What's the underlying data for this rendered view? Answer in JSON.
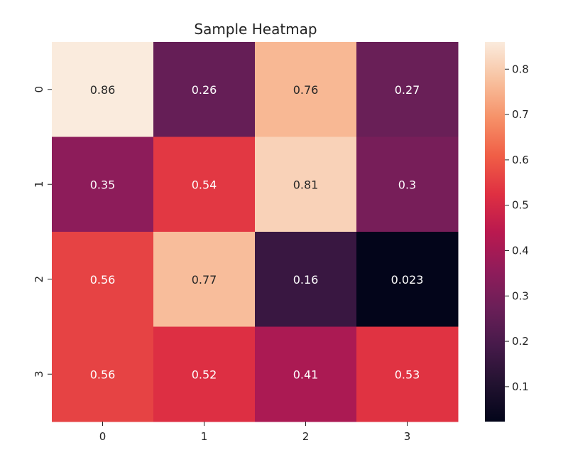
{
  "chart_data": {
    "type": "heatmap",
    "title": "Sample Heatmap",
    "x_labels": [
      "0",
      "1",
      "2",
      "3"
    ],
    "y_labels": [
      "0",
      "1",
      "2",
      "3"
    ],
    "values": [
      [
        0.86,
        0.26,
        0.76,
        0.27
      ],
      [
        0.35,
        0.54,
        0.81,
        0.3
      ],
      [
        0.56,
        0.77,
        0.16,
        0.023
      ],
      [
        0.56,
        0.52,
        0.41,
        0.53
      ]
    ],
    "annotations": [
      [
        "0.86",
        "0.26",
        "0.76",
        "0.27"
      ],
      [
        "0.35",
        "0.54",
        "0.81",
        "0.3"
      ],
      [
        "0.56",
        "0.77",
        "0.16",
        "0.023"
      ],
      [
        "0.56",
        "0.52",
        "0.41",
        "0.53"
      ]
    ],
    "colorbar": {
      "min": 0.023,
      "max": 0.86,
      "ticks": [
        "0.1",
        "0.2",
        "0.3",
        "0.4",
        "0.5",
        "0.6",
        "0.7",
        "0.8"
      ]
    },
    "colormap": "rocket"
  }
}
